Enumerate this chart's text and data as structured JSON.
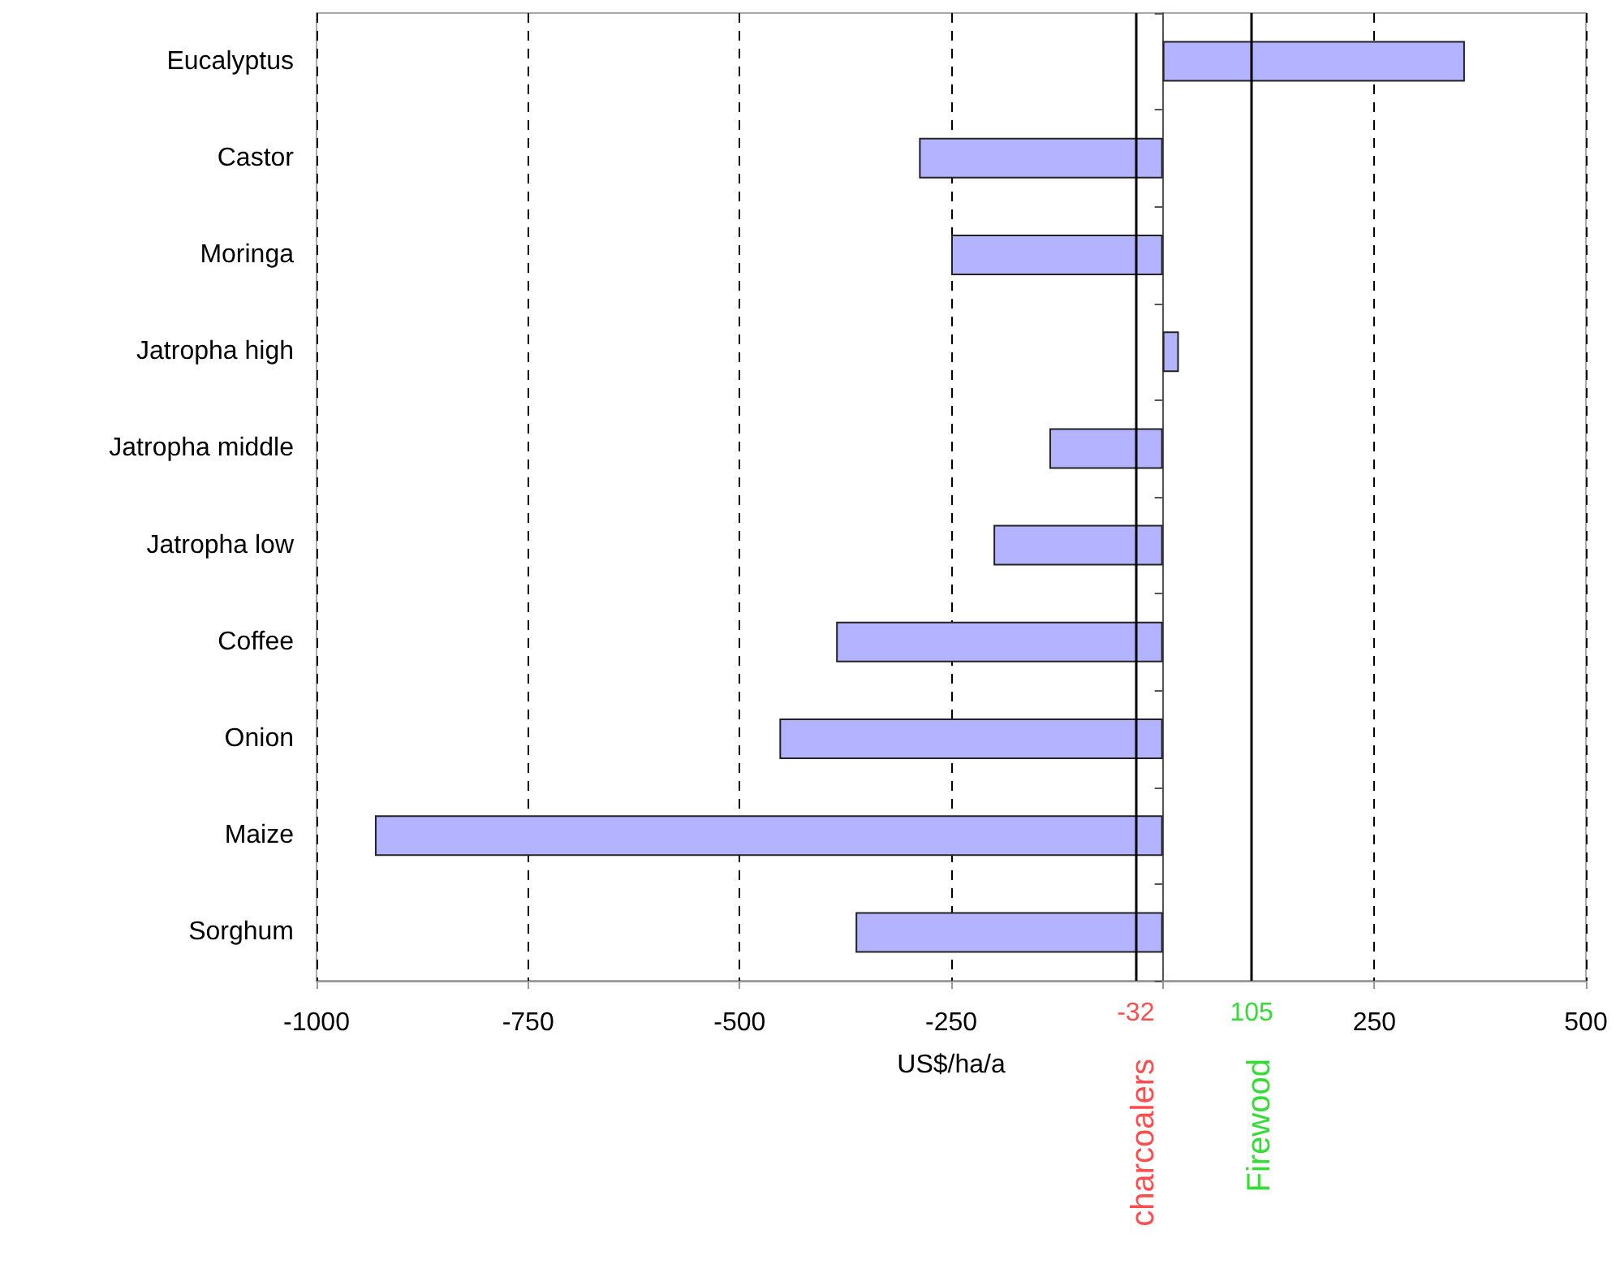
{
  "chart_data": {
    "type": "bar",
    "orientation": "horizontal",
    "categories": [
      "Eucalyptus",
      "Castor",
      "Moringa",
      "Jatropha high",
      "Jatropha middle",
      "Jatropha low",
      "Coffee",
      "Onion",
      "Maize",
      "Sorghum"
    ],
    "values": [
      357,
      -288,
      -250,
      19,
      -134,
      -200,
      -386,
      -453,
      -931,
      -363
    ],
    "color": "#b3b3ff",
    "xlabel": "US$/ha/a",
    "xlim": [
      -1000,
      500
    ],
    "xticks": [
      -1000,
      -750,
      -500,
      -250,
      {
        "value": 0,
        "label": null
      },
      250,
      500
    ],
    "grid": "x",
    "annotations": [
      "-32",
      "105"
    ],
    "ref_lines": [
      {
        "axis": "x",
        "value": -32,
        "label": "charcoalers",
        "color": "#000000"
      },
      {
        "axis": "x",
        "value": 105,
        "label": "Firewood",
        "color": "#000000"
      }
    ]
  }
}
